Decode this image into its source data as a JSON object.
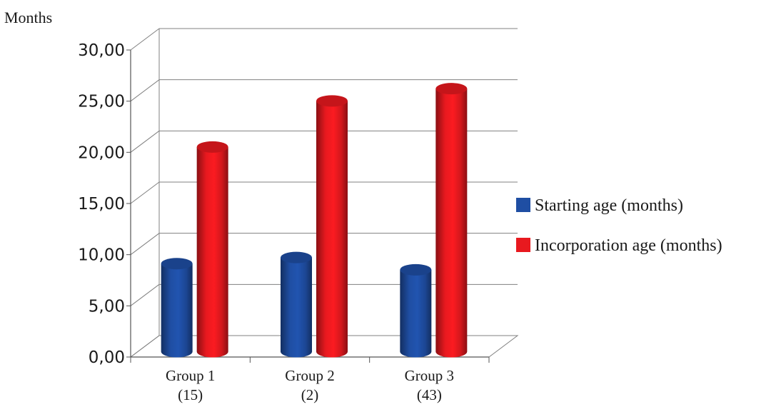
{
  "chart_data": {
    "type": "bar",
    "style": "3d-cylinder",
    "ylabel": "Months",
    "xlabel": "",
    "ylim": [
      0,
      30
    ],
    "yticks": [
      "0,00",
      "5,00",
      "10,00",
      "15,00",
      "20,00",
      "25,00",
      "30,00"
    ],
    "categories": [
      {
        "line1": "Group 1",
        "line2": "(15)"
      },
      {
        "line1": "Group 2",
        "line2": "(2)"
      },
      {
        "line1": "Group 3",
        "line2": "(43)"
      }
    ],
    "series": [
      {
        "name": "Starting age (months)",
        "color": "#1f4ea3",
        "values": [
          8.6,
          9.2,
          8.0
        ]
      },
      {
        "name": "Incorporation age (months)",
        "color": "#e8191f",
        "values": [
          20.0,
          24.5,
          25.7
        ]
      }
    ],
    "grid": true,
    "legend": "right"
  }
}
